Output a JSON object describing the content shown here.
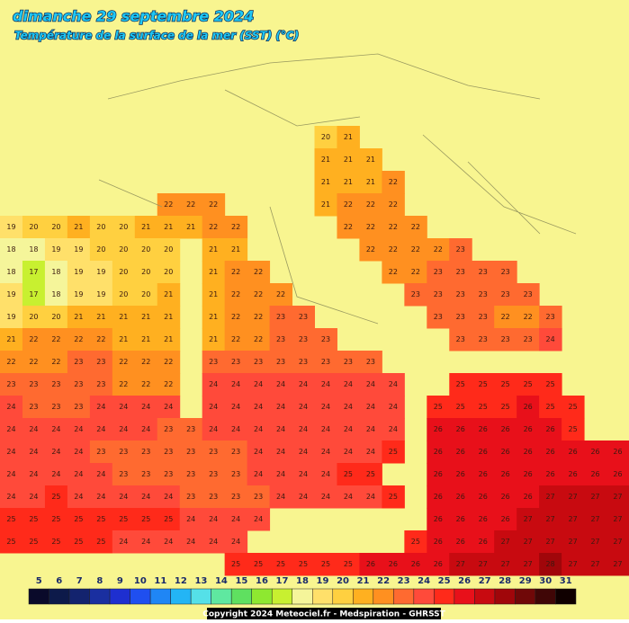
{
  "header": {
    "title": "dimanche 29 septembre 2024",
    "subtitle": "Température de la surface de la mer (SST) (°C)"
  },
  "grid": {
    "rows": [
      [
        null,
        null,
        null,
        null,
        null,
        null,
        null,
        null,
        null,
        null,
        null,
        null,
        null,
        null,
        20,
        21,
        null,
        null,
        null,
        null,
        null,
        null,
        null,
        null,
        null,
        null,
        null,
        null
      ],
      [
        null,
        null,
        null,
        null,
        null,
        null,
        null,
        null,
        null,
        null,
        null,
        null,
        null,
        null,
        21,
        21,
        21,
        null,
        null,
        null,
        null,
        null,
        null,
        null,
        null,
        null,
        null,
        null
      ],
      [
        null,
        null,
        null,
        null,
        null,
        null,
        null,
        null,
        null,
        null,
        null,
        null,
        null,
        null,
        21,
        21,
        21,
        22,
        null,
        null,
        null,
        null,
        null,
        null,
        null,
        null,
        null,
        null
      ],
      [
        null,
        null,
        null,
        null,
        null,
        null,
        null,
        22,
        22,
        22,
        null,
        null,
        null,
        null,
        21,
        22,
        22,
        22,
        null,
        null,
        null,
        null,
        null,
        null,
        null,
        null,
        null,
        null
      ],
      [
        19,
        20,
        20,
        21,
        20,
        20,
        21,
        21,
        21,
        22,
        22,
        null,
        null,
        null,
        null,
        22,
        22,
        22,
        22,
        null,
        null,
        null,
        null,
        null,
        null,
        null,
        null,
        null
      ],
      [
        18,
        18,
        19,
        19,
        20,
        20,
        20,
        20,
        null,
        21,
        21,
        null,
        null,
        null,
        null,
        null,
        22,
        22,
        22,
        22,
        23,
        null,
        null,
        null,
        null,
        null,
        null,
        null
      ],
      [
        18,
        17,
        18,
        19,
        19,
        20,
        20,
        20,
        null,
        21,
        22,
        22,
        null,
        null,
        null,
        null,
        null,
        22,
        22,
        23,
        23,
        23,
        23,
        null,
        null,
        null,
        null,
        null
      ],
      [
        19,
        17,
        18,
        19,
        19,
        20,
        20,
        21,
        null,
        21,
        22,
        22,
        22,
        null,
        null,
        null,
        null,
        null,
        23,
        23,
        23,
        23,
        23,
        23,
        null,
        null,
        null,
        null
      ],
      [
        19,
        20,
        20,
        21,
        21,
        21,
        21,
        21,
        null,
        21,
        22,
        22,
        23,
        23,
        null,
        null,
        null,
        null,
        null,
        23,
        23,
        23,
        22,
        22,
        23,
        null,
        null,
        null
      ],
      [
        21,
        22,
        22,
        22,
        22,
        21,
        21,
        21,
        null,
        21,
        22,
        22,
        23,
        23,
        23,
        null,
        null,
        null,
        null,
        null,
        23,
        23,
        23,
        23,
        24,
        null,
        null,
        null
      ],
      [
        22,
        22,
        22,
        23,
        23,
        22,
        22,
        22,
        null,
        23,
        23,
        23,
        23,
        23,
        23,
        23,
        23,
        null,
        null,
        null,
        null,
        null,
        null,
        null,
        null,
        null,
        null,
        null
      ],
      [
        23,
        23,
        23,
        23,
        23,
        22,
        22,
        22,
        null,
        24,
        24,
        24,
        24,
        24,
        24,
        24,
        24,
        24,
        null,
        null,
        25,
        25,
        25,
        25,
        25,
        null,
        null,
        null
      ],
      [
        24,
        23,
        23,
        23,
        24,
        24,
        24,
        24,
        null,
        24,
        24,
        24,
        24,
        24,
        24,
        24,
        24,
        24,
        null,
        25,
        25,
        25,
        25,
        26,
        25,
        25,
        null,
        null
      ],
      [
        24,
        24,
        24,
        24,
        24,
        24,
        24,
        23,
        23,
        24,
        24,
        24,
        24,
        24,
        24,
        24,
        24,
        24,
        null,
        26,
        26,
        26,
        26,
        26,
        26,
        25,
        null,
        null
      ],
      [
        24,
        24,
        24,
        24,
        23,
        23,
        23,
        23,
        23,
        23,
        23,
        24,
        24,
        24,
        24,
        24,
        24,
        25,
        null,
        26,
        26,
        26,
        26,
        26,
        26,
        26,
        26,
        26
      ],
      [
        24,
        24,
        24,
        24,
        24,
        23,
        23,
        23,
        23,
        23,
        23,
        24,
        24,
        24,
        24,
        25,
        25,
        null,
        null,
        26,
        26,
        26,
        26,
        26,
        26,
        26,
        26,
        26
      ],
      [
        24,
        24,
        25,
        24,
        24,
        24,
        24,
        24,
        23,
        23,
        23,
        23,
        24,
        24,
        24,
        24,
        24,
        25,
        null,
        26,
        26,
        26,
        26,
        26,
        27,
        27,
        27,
        27
      ],
      [
        25,
        25,
        25,
        25,
        25,
        25,
        25,
        25,
        24,
        24,
        24,
        24,
        null,
        null,
        null,
        null,
        null,
        null,
        null,
        26,
        26,
        26,
        26,
        27,
        27,
        27,
        27,
        27
      ],
      [
        25,
        25,
        25,
        25,
        25,
        24,
        24,
        24,
        24,
        24,
        24,
        null,
        null,
        null,
        null,
        null,
        null,
        null,
        25,
        26,
        26,
        26,
        27,
        27,
        27,
        27,
        27,
        27
      ],
      [
        null,
        null,
        null,
        null,
        null,
        null,
        null,
        null,
        null,
        null,
        25,
        25,
        25,
        25,
        25,
        25,
        26,
        26,
        26,
        26,
        27,
        27,
        27,
        27,
        28,
        27,
        27,
        27
      ]
    ]
  },
  "legend": {
    "labels": [
      5,
      6,
      7,
      8,
      9,
      10,
      11,
      12,
      13,
      14,
      15,
      16,
      17,
      18,
      19,
      20,
      21,
      22,
      23,
      24,
      25,
      26,
      27,
      28,
      29,
      30,
      31
    ],
    "colors": [
      "#0a0a2a",
      "#0d1a4a",
      "#13236e",
      "#1a2fa0",
      "#1e2fd0",
      "#1f4ff0",
      "#1f86f5",
      "#23b5f5",
      "#55e0e8",
      "#5fe8a0",
      "#5fe060",
      "#8ee830",
      "#c8f030",
      "#f5f59a",
      "#ffe06a",
      "#ffd040",
      "#ffb020",
      "#ff9020",
      "#ff6a30",
      "#ff4a3a",
      "#ff2a1a",
      "#e8101a",
      "#c80a10",
      "#a0060a",
      "#700808",
      "#400606",
      "#100000"
    ]
  },
  "footer": {
    "copyright": "Copyright 2024 Meteociel.fr - Medspiration - GHRSST"
  }
}
